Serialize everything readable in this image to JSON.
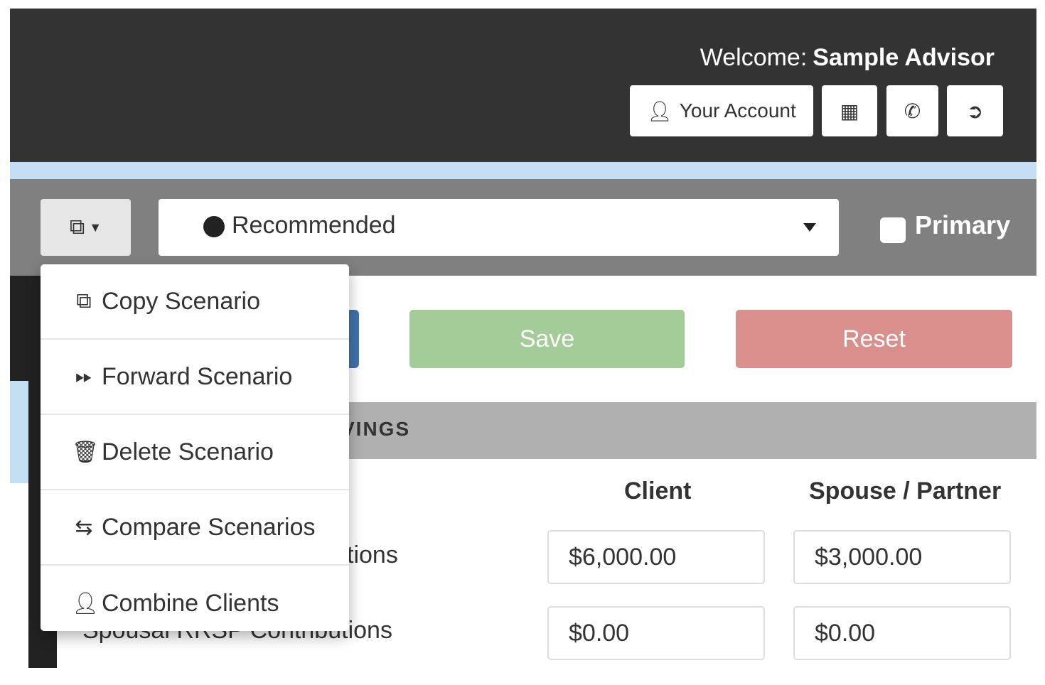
{
  "header": {
    "welcome_label": "Welcome:",
    "user_name": "Sample Advisor",
    "account_label": "Your Account",
    "icons": {
      "account": "user-icon",
      "calculator": "calculator-icon",
      "phone": "phone-icon",
      "logout": "logout-icon"
    }
  },
  "toolbar": {
    "scenario_selected": "Recommended",
    "primary_label": "Primary",
    "primary_checked": false
  },
  "actions": {
    "save_label": "Save",
    "reset_label": "Reset"
  },
  "colors": {
    "header": "#333333",
    "toolbar": "#808080",
    "save": "#a3cc98",
    "reset": "#d98f8b",
    "strip": "#c4dff2"
  },
  "section": {
    "title_partial": "VINGS"
  },
  "table": {
    "columns": [
      "Client",
      "Spouse / Partner"
    ],
    "rows": [
      {
        "label": "tions",
        "client": "$6,000.00",
        "spouse": "$3,000.00"
      },
      {
        "label": "Spousal RRSP Contributions",
        "client": "$0.00",
        "spouse": "$0.00"
      }
    ]
  },
  "menu": {
    "items": [
      {
        "label": "Copy Scenario",
        "icon": "copy-icon"
      },
      {
        "label": "Forward Scenario",
        "icon": "fast-forward-icon"
      },
      {
        "label": "Delete Scenario",
        "icon": "trash-icon"
      },
      {
        "label": "Compare Scenarios",
        "icon": "swap-icon"
      },
      {
        "label": "Combine Clients",
        "icon": "user-icon"
      }
    ]
  }
}
